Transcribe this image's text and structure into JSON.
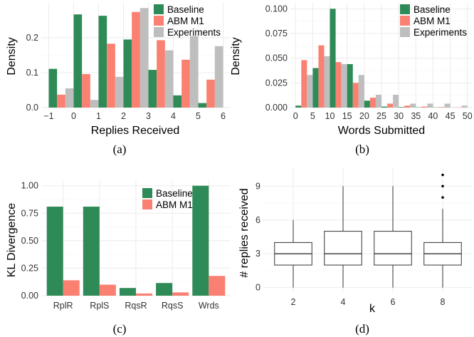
{
  "colors": {
    "baseline": "#2e8b57",
    "abm_m1": "#fa8072",
    "experiments": "#bebebe",
    "box_stroke": "#333333"
  },
  "chart_data": [
    {
      "id": "a",
      "panel_label": "(a)",
      "type": "bar",
      "xlabel": "Replies Received",
      "ylabel": "Density",
      "xlim": [
        -1.3,
        6.3
      ],
      "ylim": [
        0,
        0.3
      ],
      "xticks": [
        -1,
        0,
        1,
        2,
        3,
        4,
        5,
        6
      ],
      "xtick_labels": [
        "−1",
        "0",
        "1",
        "2",
        "3",
        "4",
        "5",
        "6"
      ],
      "yticks": [
        0.0,
        0.1,
        0.2
      ],
      "ytick_labels": [
        "0.0",
        "0.1",
        "0.2"
      ],
      "legend_position": "top-right",
      "x": [
        -1,
        0,
        1,
        2,
        3,
        4,
        5
      ],
      "series": [
        {
          "name": "Baseline",
          "color_key": "baseline",
          "values": [
            0.111,
            0.267,
            0.263,
            0.195,
            0.108,
            0.035,
            0.013
          ]
        },
        {
          "name": "ABM M1",
          "color_key": "abm_m1",
          "values": [
            0.037,
            0.096,
            0.183,
            0.274,
            0.193,
            0.137,
            0.08
          ]
        },
        {
          "name": "Experiments",
          "color_key": "experiments",
          "values": [
            0.055,
            0.022,
            0.088,
            0.285,
            0.164,
            0.205,
            0.176
          ]
        }
      ]
    },
    {
      "id": "b",
      "panel_label": "(b)",
      "type": "bar",
      "xlabel": "Words Submitted",
      "ylabel": "Density",
      "xlim": [
        -1.5,
        51.5
      ],
      "ylim": [
        0,
        0.106
      ],
      "xticks": [
        0,
        5,
        10,
        15,
        20,
        25,
        30,
        35,
        40,
        45,
        50
      ],
      "xtick_labels": [
        "0",
        "5",
        "10",
        "15",
        "20",
        "25",
        "30",
        "35",
        "40",
        "45",
        "50"
      ],
      "yticks": [
        0.0,
        0.025,
        0.05,
        0.075,
        0.1
      ],
      "ytick_labels": [
        "0.000",
        "0.025",
        "0.050",
        "0.075",
        "0.100"
      ],
      "legend_position": "top-right",
      "x": [
        2.5,
        7.5,
        12.5,
        17.5,
        22.5,
        27.5,
        32.5,
        37.5,
        42.5,
        47.5
      ],
      "series": [
        {
          "name": "Baseline",
          "color_key": "baseline",
          "values": [
            0.002,
            0.04,
            0.1,
            0.044,
            0.007,
            0.001,
            0.0005,
            0.0003,
            0.0002,
            0.0001
          ]
        },
        {
          "name": "ABM M1",
          "color_key": "abm_m1",
          "values": [
            0.048,
            0.063,
            0.046,
            0.025,
            0.01,
            0.004,
            0.002,
            0.001,
            0.0005,
            0.0003
          ]
        },
        {
          "name": "Experiments",
          "color_key": "experiments",
          "values": [
            0.033,
            0.052,
            0.044,
            0.033,
            0.013,
            0.013,
            0.004,
            0.004,
            0.004,
            0.002
          ]
        }
      ]
    },
    {
      "id": "c",
      "panel_label": "(c)",
      "type": "bar",
      "xlabel": "",
      "ylabel": "KL Divergence",
      "ylim": [
        0,
        1.05
      ],
      "categories": [
        "RplR",
        "RplS",
        "RqsR",
        "RqsS",
        "Wrds"
      ],
      "yticks": [
        0.0,
        0.25,
        0.5,
        0.75,
        1.0
      ],
      "ytick_labels": [
        "0.00",
        "0.25",
        "0.50",
        "0.75",
        "1.00"
      ],
      "legend_position": "top-right",
      "series": [
        {
          "name": "Baseline",
          "color_key": "baseline",
          "values": [
            0.81,
            0.81,
            0.07,
            0.115,
            1.0
          ]
        },
        {
          "name": "ABM M1",
          "color_key": "abm_m1",
          "values": [
            0.14,
            0.1,
            0.02,
            0.03,
            0.18
          ]
        }
      ]
    },
    {
      "id": "d",
      "panel_label": "(d)",
      "type": "boxplot",
      "xlabel": "k",
      "ylabel": "# replies received",
      "ylim": [
        -0.4,
        10.6
      ],
      "categories": [
        "2",
        "4",
        "6",
        "8"
      ],
      "yticks": [
        0,
        3,
        6,
        9
      ],
      "ytick_labels": [
        "0",
        "3",
        "6",
        "9"
      ],
      "boxes": [
        {
          "k": "2",
          "whisker_low": 0,
          "q1": 2,
          "median": 3,
          "q3": 4,
          "whisker_high": 6,
          "outliers": []
        },
        {
          "k": "4",
          "whisker_low": 0,
          "q1": 2,
          "median": 3,
          "q3": 5,
          "whisker_high": 9,
          "outliers": []
        },
        {
          "k": "6",
          "whisker_low": 0,
          "q1": 2,
          "median": 3,
          "q3": 5,
          "whisker_high": 9,
          "outliers": []
        },
        {
          "k": "8",
          "whisker_low": 0,
          "q1": 2,
          "median": 3,
          "q3": 4,
          "whisker_high": 7,
          "outliers": [
            8,
            9,
            10
          ]
        }
      ]
    }
  ]
}
